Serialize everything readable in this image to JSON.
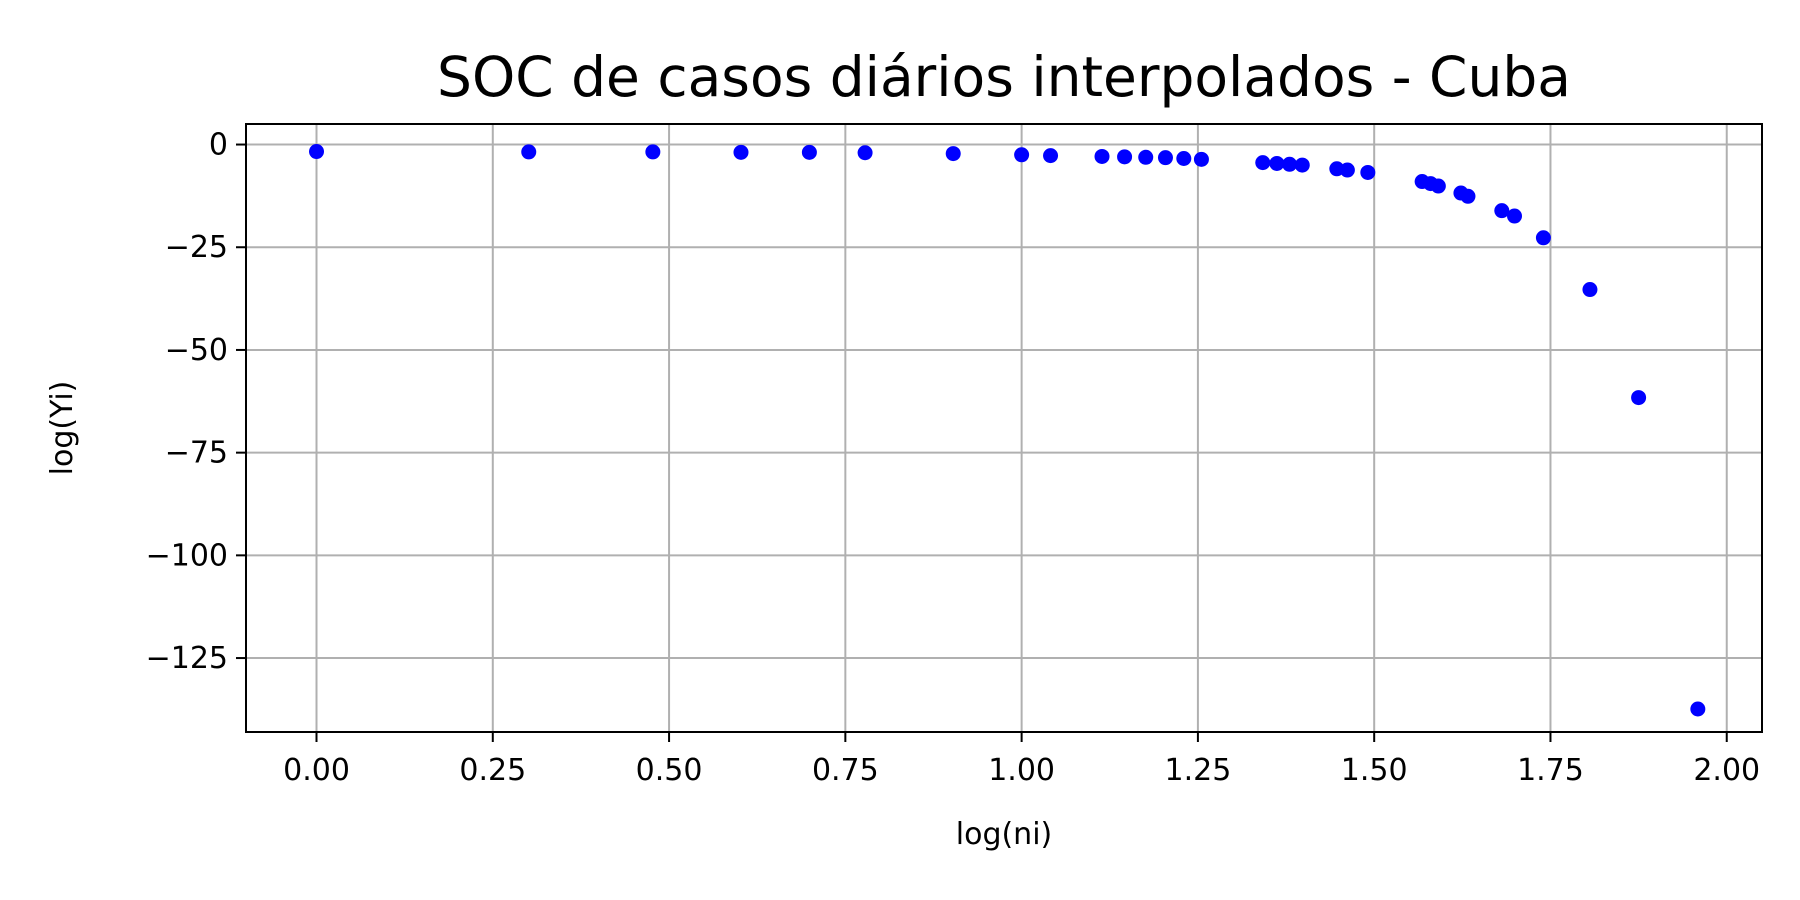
{
  "chart_data": {
    "type": "scatter",
    "title": "SOC de casos diários interpolados - Cuba",
    "xlabel": "log(ni)",
    "ylabel": "log(Yi)",
    "xlim": [
      -0.1,
      2.05
    ],
    "ylim": [
      -143,
      5
    ],
    "xticks": [
      0.0,
      0.25,
      0.5,
      0.75,
      1.0,
      1.25,
      1.5,
      1.75,
      2.0
    ],
    "xtick_labels": [
      "0.00",
      "0.25",
      "0.50",
      "0.75",
      "1.00",
      "1.25",
      "1.50",
      "1.75",
      "2.00"
    ],
    "yticks": [
      0,
      -25,
      -50,
      -75,
      -100,
      -125
    ],
    "ytick_labels": [
      "0",
      "−25",
      "−50",
      "−75",
      "−100",
      "−125"
    ],
    "grid": true,
    "marker_color": "#0000ff",
    "series": [
      {
        "x": [
          0.0,
          0.301,
          0.477,
          0.602,
          0.699,
          0.778,
          0.903,
          1.0,
          1.041,
          1.114,
          1.146,
          1.176,
          1.204,
          1.23,
          1.255,
          1.342,
          1.362,
          1.38,
          1.398,
          1.447,
          1.462,
          1.491,
          1.568,
          1.58,
          1.591,
          1.623,
          1.633,
          1.681,
          1.699,
          1.74,
          1.806,
          1.875,
          1.959
        ],
        "y": [
          -1.7,
          -1.8,
          -1.8,
          -1.9,
          -1.9,
          -2.0,
          -2.2,
          -2.5,
          -2.7,
          -2.9,
          -3.0,
          -3.1,
          -3.2,
          -3.4,
          -3.6,
          -4.4,
          -4.6,
          -4.8,
          -5.0,
          -5.9,
          -6.2,
          -6.8,
          -9.0,
          -9.5,
          -10.1,
          -11.8,
          -12.6,
          -16.1,
          -17.4,
          -22.7,
          -35.3,
          -61.6,
          -137.4
        ]
      }
    ]
  }
}
